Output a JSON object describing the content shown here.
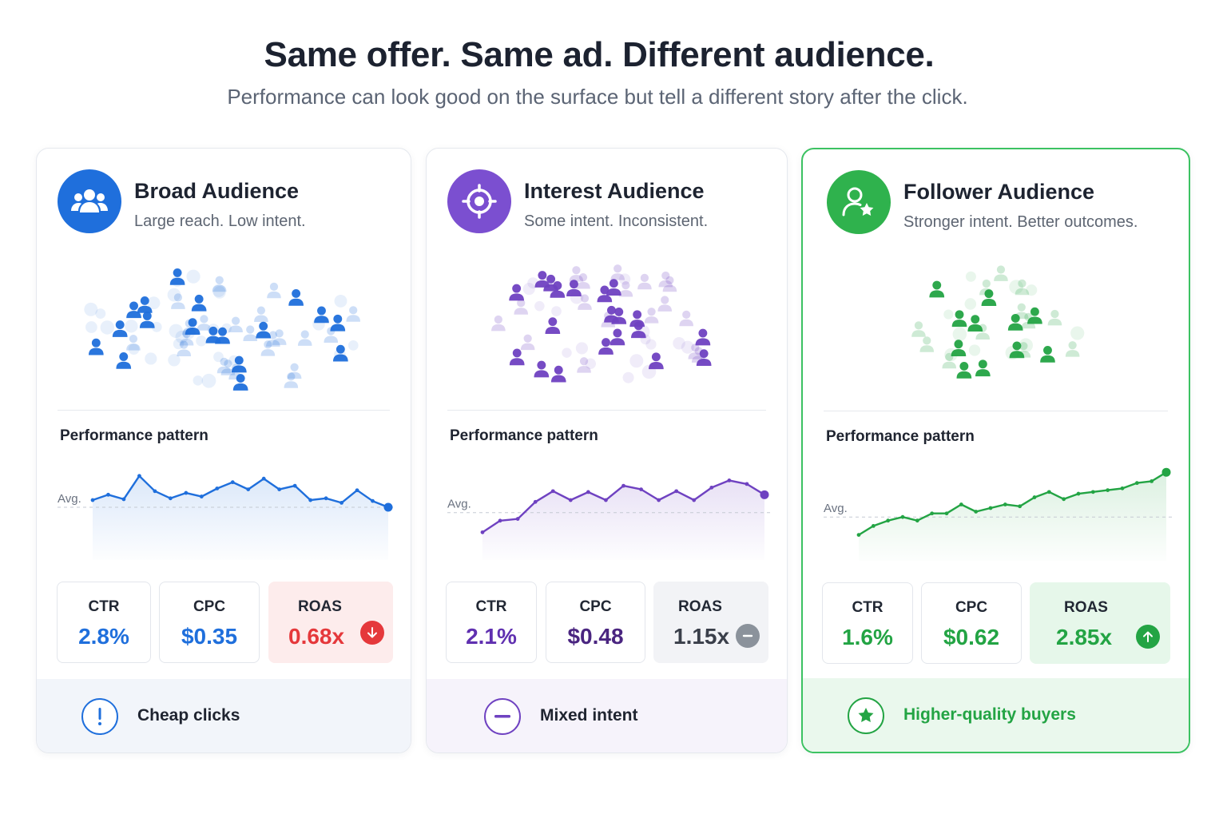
{
  "header": {
    "title": "Same offer. Same ad. Different audience.",
    "subtitle": "Performance can look good on the surface but tell a different story after the click."
  },
  "cards": [
    {
      "title": "Broad Audience",
      "description": "Large reach. Low intent.",
      "icon": "group-icon",
      "accent": "#1f6fdc",
      "perf_label": "Performance pattern",
      "avg_label": "Avg.",
      "metrics": {
        "ctr_label": "CTR",
        "ctr_value": "2.8%",
        "cpc_label": "CPC",
        "cpc_value": "$0.35",
        "roas_label": "ROAS",
        "roas_value": "0.68x",
        "roas_trend": "down"
      },
      "footer_text": "Cheap clicks",
      "footer_icon": "exclamation-icon"
    },
    {
      "title": "Interest Audience",
      "description": "Some intent. Inconsistent.",
      "icon": "target-icon",
      "accent": "#6f42c1",
      "perf_label": "Performance pattern",
      "avg_label": "Avg.",
      "metrics": {
        "ctr_label": "CTR",
        "ctr_value": "2.1%",
        "cpc_label": "CPC",
        "cpc_value": "$0.48",
        "roas_label": "ROAS",
        "roas_value": "1.15x",
        "roas_trend": "flat"
      },
      "footer_text": "Mixed intent",
      "footer_icon": "minus-icon"
    },
    {
      "title": "Follower Audience",
      "description": "Stronger intent. Better outcomes.",
      "icon": "follower-star-icon",
      "accent": "#23a444",
      "perf_label": "Performance pattern",
      "avg_label": "Avg.",
      "metrics": {
        "ctr_label": "CTR",
        "ctr_value": "1.6%",
        "cpc_label": "CPC",
        "cpc_value": "$0.62",
        "roas_label": "ROAS",
        "roas_value": "2.85x",
        "roas_trend": "up"
      },
      "footer_text": "Higher-quality buyers",
      "footer_icon": "star-circle-icon"
    }
  ],
  "colors": {
    "blue": "#1f6fdc",
    "purple": "#6f42c1",
    "green": "#23a444",
    "red": "#e5383b",
    "gray": "#8b929b"
  },
  "chart_data": [
    {
      "type": "line",
      "title": "Performance pattern",
      "series": [
        {
          "values": [
            58,
            64,
            59,
            85,
            68,
            60,
            66,
            62,
            71,
            78,
            70,
            82,
            70,
            74,
            58,
            60,
            55,
            69,
            57,
            50
          ]
        }
      ],
      "reference_line": {
        "label": "Avg.",
        "value": 50
      },
      "ylim": [
        0,
        100
      ]
    },
    {
      "type": "line",
      "title": "Performance pattern",
      "series": [
        {
          "values": [
            22,
            35,
            37,
            56,
            68,
            58,
            67,
            58,
            74,
            70,
            58,
            68,
            58,
            72,
            80,
            76,
            64
          ]
        }
      ],
      "reference_line": {
        "label": "Avg.",
        "value": 44
      },
      "ylim": [
        0,
        100
      ]
    },
    {
      "type": "line",
      "title": "Performance pattern",
      "series": [
        {
          "values": [
            20,
            30,
            36,
            40,
            36,
            44,
            44,
            54,
            46,
            50,
            54,
            52,
            62,
            68,
            60,
            66,
            68,
            70,
            72,
            78,
            80,
            90
          ]
        }
      ],
      "reference_line": {
        "label": "Avg.",
        "value": 40
      },
      "ylim": [
        0,
        100
      ]
    }
  ]
}
